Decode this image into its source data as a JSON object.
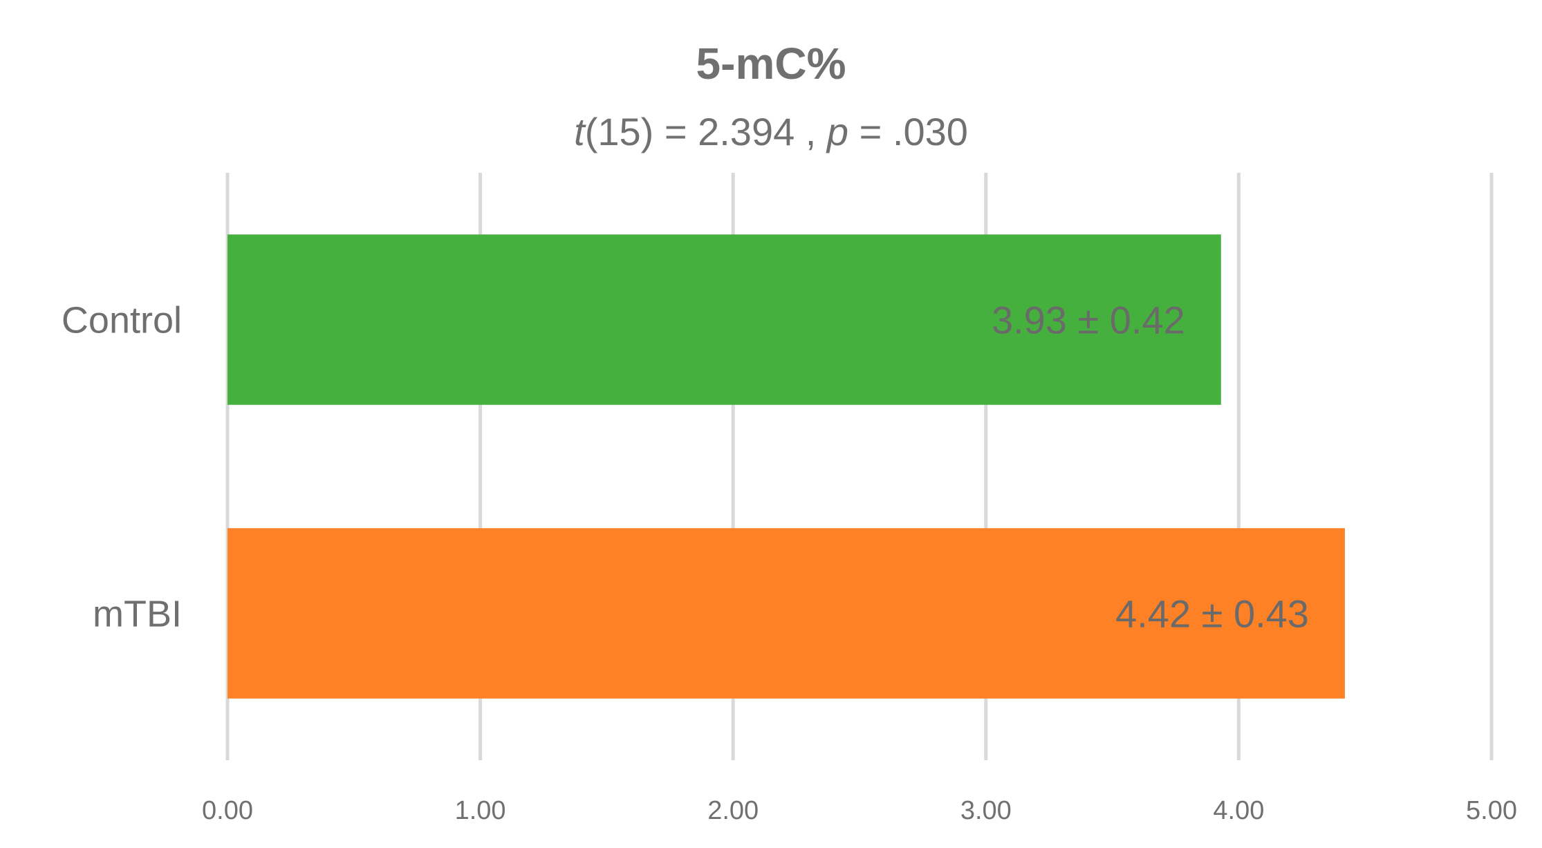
{
  "chart_data": {
    "type": "bar",
    "orientation": "horizontal",
    "title": "5-mC%",
    "subtitle": {
      "t_symbol": "t",
      "t_value": "(15) = 2.394 , ",
      "p_symbol": "p",
      "p_value": " = .030"
    },
    "categories": [
      "Control",
      "mTBI"
    ],
    "values": [
      3.93,
      4.42
    ],
    "data_labels": [
      "3.93 ± 0.42",
      "4.42 ± 0.43"
    ],
    "colors": [
      "#46b03e",
      "#fe8126"
    ],
    "xlim": [
      0,
      5
    ],
    "ticks": [
      0,
      1,
      2,
      3,
      4,
      5
    ],
    "tick_labels": [
      "0.00",
      "1.00",
      "2.00",
      "3.00",
      "4.00",
      "5.00"
    ],
    "grid": "vertical",
    "grid_color": "#d9d9d9",
    "xlabel": "",
    "ylabel": "",
    "legend": "none"
  }
}
